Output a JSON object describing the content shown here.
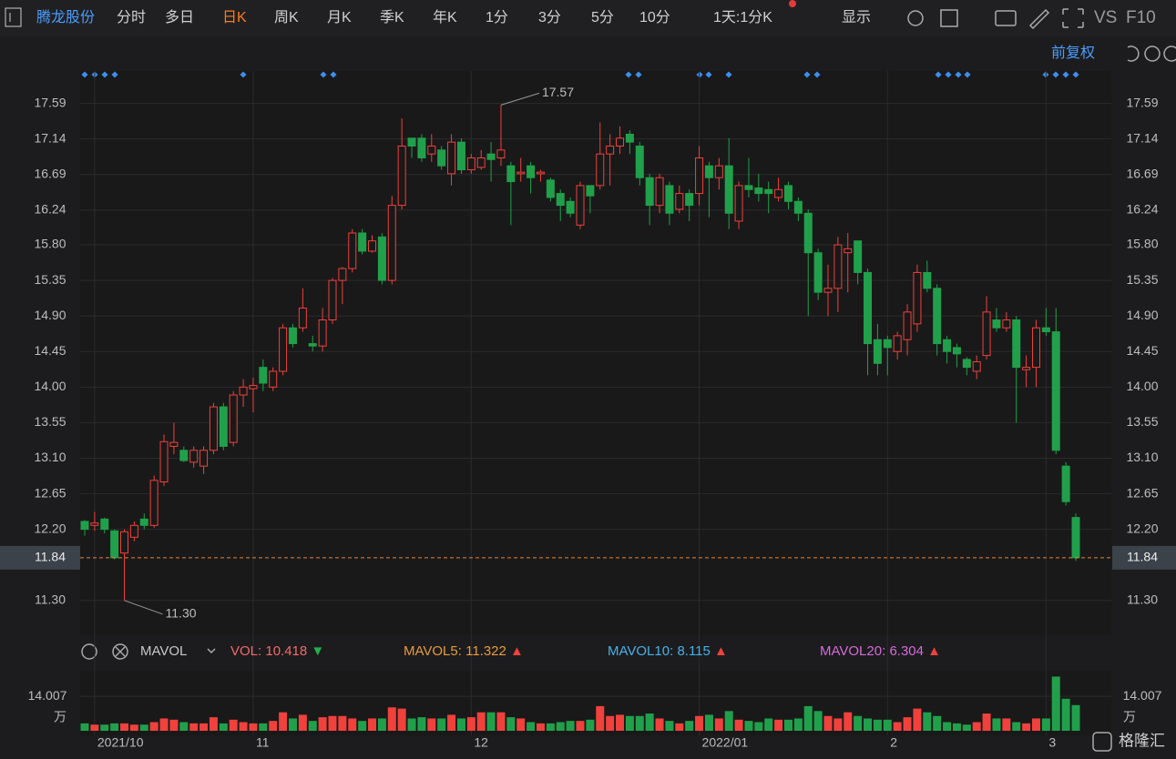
{
  "toolbar": {
    "stock": "腾龙股份",
    "tabs": [
      "分时",
      "多日",
      "日K",
      "周K",
      "月K",
      "季K",
      "年K",
      "1分",
      "3分",
      "5分",
      "10分"
    ],
    "active": "日K",
    "period": "1天:1分K",
    "display": "显示",
    "vs": "VS",
    "f10": "F10",
    "adjust": "前复权"
  },
  "indicator": {
    "name": "MAVOL",
    "items": [
      {
        "label": "VOL:",
        "value": 10.418,
        "arrow": "▼",
        "color": "#f26a6a",
        "arrow_color": "#21b04b"
      },
      {
        "label": "MAVOL5:",
        "value": 11.322,
        "arrow": "▲",
        "color": "#e89a3c",
        "arrow_color": "#f0413c"
      },
      {
        "label": "MAVOL10:",
        "value": 8.115,
        "arrow": "▲",
        "color": "#48b0e8",
        "arrow_color": "#f0413c"
      },
      {
        "label": "MAVOL20:",
        "value": 6.304,
        "arrow": "▲",
        "color": "#d76ad8",
        "arrow_color": "#f0413c"
      }
    ]
  },
  "logo": "格隆汇",
  "chart_data": [
    {
      "type": "candlestick",
      "up_color": "#f0413c",
      "down_color": "#21a04b",
      "grid": true,
      "categories": [
        null,
        "2021/10",
        null,
        null,
        null,
        null,
        null,
        null,
        null,
        null,
        null,
        null,
        null,
        null,
        null,
        null,
        null,
        "11",
        null,
        null,
        null,
        null,
        null,
        null,
        null,
        null,
        null,
        null,
        null,
        null,
        null,
        null,
        null,
        null,
        null,
        null,
        null,
        null,
        null,
        "12",
        null,
        null,
        null,
        null,
        null,
        null,
        null,
        null,
        null,
        null,
        null,
        null,
        null,
        null,
        null,
        null,
        null,
        null,
        null,
        null,
        null,
        null,
        "2022/01",
        null,
        null,
        null,
        null,
        null,
        null,
        null,
        null,
        null,
        null,
        null,
        null,
        null,
        null,
        null,
        null,
        null,
        null,
        "2",
        null,
        null,
        null,
        null,
        null,
        null,
        null,
        null,
        null,
        null,
        null,
        null,
        null,
        null,
        null,
        "3",
        null,
        null,
        null
      ],
      "ohlc": [
        [
          12.3,
          12.32,
          12.12,
          12.2
        ],
        [
          12.25,
          12.42,
          12.18,
          12.28
        ],
        [
          12.33,
          12.35,
          12.15,
          12.2
        ],
        [
          12.18,
          12.2,
          11.82,
          11.84
        ],
        [
          11.9,
          12.2,
          11.3,
          12.17
        ],
        [
          12.1,
          12.3,
          12.05,
          12.25
        ],
        [
          12.33,
          12.4,
          12.2,
          12.25
        ],
        [
          12.25,
          12.88,
          12.22,
          12.82
        ],
        [
          12.8,
          13.4,
          12.75,
          13.31
        ],
        [
          13.25,
          13.55,
          13.15,
          13.3
        ],
        [
          13.2,
          13.25,
          13.05,
          13.07
        ],
        [
          13.05,
          13.25,
          12.98,
          13.2
        ],
        [
          13.0,
          13.25,
          12.9,
          13.2
        ],
        [
          13.2,
          13.8,
          13.15,
          13.75
        ],
        [
          13.75,
          13.8,
          13.2,
          13.25
        ],
        [
          13.3,
          13.95,
          13.25,
          13.9
        ],
        [
          13.9,
          14.1,
          13.75,
          14.0
        ],
        [
          13.98,
          14.12,
          13.68,
          14.02
        ],
        [
          14.25,
          14.35,
          13.95,
          14.05
        ],
        [
          14.0,
          14.25,
          13.95,
          14.2
        ],
        [
          14.2,
          14.8,
          14.15,
          14.75
        ],
        [
          14.75,
          14.8,
          14.5,
          14.55
        ],
        [
          14.75,
          15.25,
          14.7,
          15.0
        ],
        [
          14.55,
          14.65,
          14.45,
          14.52
        ],
        [
          14.52,
          15.0,
          14.45,
          14.85
        ],
        [
          14.85,
          15.38,
          14.8,
          15.35
        ],
        [
          15.35,
          15.52,
          15.05,
          15.5
        ],
        [
          15.5,
          16.0,
          15.45,
          15.95
        ],
        [
          15.95,
          16.0,
          15.68,
          15.72
        ],
        [
          15.72,
          15.92,
          15.7,
          15.85
        ],
        [
          15.9,
          15.95,
          15.3,
          15.35
        ],
        [
          15.35,
          16.42,
          15.3,
          16.3
        ],
        [
          16.3,
          17.4,
          16.25,
          17.05
        ],
        [
          17.15,
          17.15,
          16.9,
          17.05
        ],
        [
          17.15,
          17.2,
          16.85,
          16.9
        ],
        [
          16.95,
          17.2,
          16.85,
          17.05
        ],
        [
          17.0,
          17.05,
          16.75,
          16.8
        ],
        [
          16.7,
          17.2,
          16.55,
          17.1
        ],
        [
          17.1,
          17.15,
          16.7,
          16.75
        ],
        [
          16.75,
          16.95,
          16.7,
          16.9
        ],
        [
          16.78,
          17.0,
          16.75,
          16.9
        ],
        [
          16.95,
          17.1,
          16.6,
          16.88
        ],
        [
          16.9,
          17.57,
          16.8,
          17.0
        ],
        [
          16.8,
          16.85,
          16.05,
          16.6
        ],
        [
          16.7,
          16.9,
          16.6,
          16.72
        ],
        [
          16.8,
          16.85,
          16.45,
          16.65
        ],
        [
          16.7,
          16.75,
          16.6,
          16.72
        ],
        [
          16.62,
          16.65,
          16.35,
          16.4
        ],
        [
          16.45,
          16.5,
          16.1,
          16.3
        ],
        [
          16.35,
          16.4,
          16.15,
          16.2
        ],
        [
          16.05,
          16.6,
          16.0,
          16.55
        ],
        [
          16.55,
          16.55,
          16.2,
          16.42
        ],
        [
          16.55,
          17.35,
          16.5,
          16.95
        ],
        [
          16.95,
          17.2,
          16.55,
          17.05
        ],
        [
          17.05,
          17.3,
          16.95,
          17.15
        ],
        [
          17.2,
          17.25,
          16.95,
          17.1
        ],
        [
          17.05,
          17.1,
          16.55,
          16.65
        ],
        [
          16.65,
          16.7,
          16.05,
          16.3
        ],
        [
          16.3,
          16.7,
          16.2,
          16.65
        ],
        [
          16.55,
          16.6,
          16.05,
          16.2
        ],
        [
          16.25,
          16.55,
          16.2,
          16.45
        ],
        [
          16.45,
          16.5,
          16.1,
          16.3
        ],
        [
          16.45,
          17.05,
          16.3,
          16.9
        ],
        [
          16.8,
          16.85,
          16.15,
          16.65
        ],
        [
          16.65,
          16.9,
          16.5,
          16.8
        ],
        [
          16.8,
          17.15,
          16.0,
          16.2
        ],
        [
          16.1,
          16.6,
          16.0,
          16.55
        ],
        [
          16.55,
          16.9,
          16.4,
          16.5
        ],
        [
          16.52,
          16.7,
          16.35,
          16.45
        ],
        [
          16.5,
          16.6,
          16.2,
          16.45
        ],
        [
          16.4,
          16.65,
          16.35,
          16.5
        ],
        [
          16.55,
          16.6,
          16.25,
          16.35
        ],
        [
          16.35,
          16.4,
          16.1,
          16.2
        ],
        [
          16.2,
          16.25,
          14.9,
          15.7
        ],
        [
          15.7,
          15.75,
          15.1,
          15.2
        ],
        [
          15.2,
          15.55,
          14.9,
          15.25
        ],
        [
          15.25,
          15.9,
          14.95,
          15.8
        ],
        [
          15.7,
          15.95,
          15.2,
          15.75
        ],
        [
          15.85,
          15.85,
          15.3,
          15.45
        ],
        [
          15.45,
          15.5,
          14.15,
          14.55
        ],
        [
          14.6,
          14.8,
          14.15,
          14.3
        ],
        [
          14.6,
          14.65,
          14.15,
          14.5
        ],
        [
          14.45,
          14.7,
          14.35,
          14.65
        ],
        [
          14.6,
          15.05,
          14.4,
          14.95
        ],
        [
          14.8,
          15.55,
          14.7,
          15.45
        ],
        [
          15.45,
          15.6,
          15.2,
          15.25
        ],
        [
          15.25,
          15.3,
          14.4,
          14.55
        ],
        [
          14.6,
          14.65,
          14.3,
          14.45
        ],
        [
          14.5,
          14.55,
          14.25,
          14.42
        ],
        [
          14.35,
          14.38,
          14.15,
          14.25
        ],
        [
          14.2,
          14.4,
          14.1,
          14.32
        ],
        [
          14.4,
          15.15,
          14.35,
          14.95
        ],
        [
          14.85,
          15.0,
          14.7,
          14.75
        ],
        [
          14.75,
          14.95,
          14.7,
          14.85
        ],
        [
          14.85,
          14.9,
          13.55,
          14.25
        ],
        [
          14.22,
          14.4,
          14.0,
          14.25
        ],
        [
          14.25,
          14.85,
          14.0,
          14.75
        ],
        [
          14.75,
          15.0,
          14.65,
          14.7
        ],
        [
          14.7,
          15.0,
          13.15,
          13.2
        ],
        [
          13.0,
          13.05,
          12.5,
          12.55
        ],
        [
          12.35,
          12.4,
          11.8,
          11.84
        ]
      ],
      "ylim": [
        10.86,
        18.0
      ],
      "yticks": [
        17.59,
        17.14,
        16.69,
        16.24,
        {
          "value": 15.8,
          "label": "15.80"
        },
        15.35,
        {
          "value": 14.9,
          "label": "14.90"
        },
        14.45,
        {
          "value": 14.0,
          "label": "14.00"
        },
        13.55,
        {
          "value": 13.1,
          "label": "13.10"
        },
        12.65,
        {
          "value": 12.2,
          "label": "12.20"
        },
        {
          "value": 11.3,
          "label": "11.30"
        }
      ],
      "last_price": 11.84,
      "last_color": "#e8843a",
      "annotations": [
        {
          "value": 17.57,
          "label": "17.57",
          "at": "high"
        },
        {
          "value": 11.3,
          "label": "11.30",
          "at": "low"
        }
      ]
    },
    {
      "type": "bar",
      "unit": "万",
      "values": [
        3,
        2.5,
        2.5,
        3,
        3,
        2.5,
        2.5,
        3.5,
        5,
        4.5,
        3.5,
        3,
        3,
        5.5,
        3,
        4.5,
        3.5,
        3,
        3,
        4,
        7.5,
        5,
        6.5,
        4,
        5.5,
        6,
        6,
        5,
        4,
        5,
        5,
        9.5,
        9,
        5,
        5.5,
        5,
        5,
        6.5,
        5,
        5.5,
        7.5,
        7.5,
        7.5,
        5.5,
        5,
        3.5,
        3,
        3,
        3.5,
        4,
        4,
        4.5,
        10,
        6,
        6.5,
        6,
        6,
        7,
        5,
        4,
        3,
        4,
        6,
        6.5,
        5,
        8,
        4.5,
        4,
        3.5,
        5,
        4.5,
        4.5,
        5,
        10,
        8,
        6,
        5,
        7.5,
        6,
        5,
        4.5,
        4.5,
        3.5,
        5.5,
        9,
        7.5,
        6,
        3.5,
        3,
        2.5,
        3.5,
        7,
        5,
        5,
        3.5,
        3,
        5,
        5,
        22,
        13,
        10.418
      ],
      "ylim": [
        0,
        24
      ],
      "yticks": [
        14.007
      ]
    }
  ]
}
